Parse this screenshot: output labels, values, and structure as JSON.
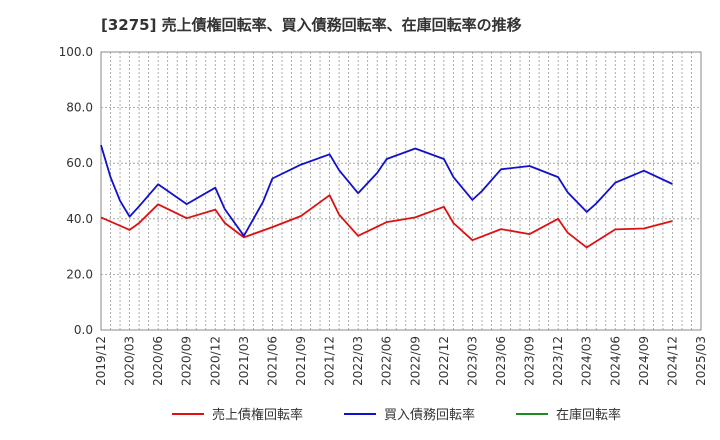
{
  "chart_data": {
    "type": "line",
    "title": "[3275]  売上債権回転率、買入債務回転率、在庫回転率の推移",
    "xlabel": "",
    "ylabel": "",
    "ylim": [
      0,
      100
    ],
    "y_ticks": [
      "0.0",
      "20.0",
      "40.0",
      "60.0",
      "80.0",
      "100.0"
    ],
    "y_tick_values": [
      0,
      20,
      40,
      60,
      80,
      100
    ],
    "x_range": [
      0,
      63
    ],
    "x_tick_labels": [
      "2019/12",
      "2020/03",
      "2020/06",
      "2020/09",
      "2020/12",
      "2021/03",
      "2021/06",
      "2021/09",
      "2021/12",
      "2022/03",
      "2022/06",
      "2022/09",
      "2022/12",
      "2023/03",
      "2023/06",
      "2023/09",
      "2023/12",
      "2024/03",
      "2024/06",
      "2024/09",
      "2024/12",
      "2025/03"
    ],
    "x_tick_months": [
      0,
      3,
      6,
      9,
      12,
      15,
      18,
      21,
      24,
      27,
      30,
      33,
      36,
      39,
      42,
      45,
      48,
      51,
      54,
      57,
      60,
      63
    ],
    "grid": true,
    "legend_position": "bottom",
    "series": [
      {
        "name": "売上債権回転率",
        "color": "#dd1111",
        "x": [
          0,
          3,
          4,
          6,
          9,
          12,
          13,
          15,
          18,
          21,
          24,
          25,
          27,
          30,
          33,
          36,
          37,
          39,
          42,
          45,
          48,
          49,
          51,
          54,
          57,
          60
        ],
        "values": [
          40.5,
          36.0,
          38.5,
          45.2,
          40.2,
          43.3,
          38.5,
          33.3,
          37.0,
          41.0,
          48.5,
          41.5,
          33.9,
          38.8,
          40.5,
          44.3,
          38.5,
          32.3,
          36.3,
          34.5,
          40.0,
          35.0,
          29.7,
          36.2,
          36.5,
          39.2
        ]
      },
      {
        "name": "買入債務回転率",
        "color": "#1111cc",
        "x": [
          0,
          1,
          2,
          3,
          4,
          6,
          9,
          12,
          13,
          15,
          17,
          18,
          21,
          24,
          25,
          27,
          29,
          30,
          33,
          36,
          37,
          39,
          40,
          42,
          45,
          48,
          49,
          51,
          52,
          54,
          57,
          60
        ],
        "values": [
          66.5,
          55.0,
          46.5,
          40.8,
          44.5,
          52.4,
          45.3,
          51.2,
          43.5,
          33.9,
          46.0,
          54.5,
          59.5,
          63.2,
          57.5,
          49.2,
          56.5,
          61.5,
          65.3,
          61.5,
          55.0,
          46.8,
          50.0,
          57.8,
          59.0,
          55.0,
          49.5,
          42.5,
          45.5,
          53.0,
          57.3,
          52.5
        ]
      },
      {
        "name": "在庫回転率",
        "color": "#228822",
        "x": [],
        "values": []
      }
    ]
  }
}
